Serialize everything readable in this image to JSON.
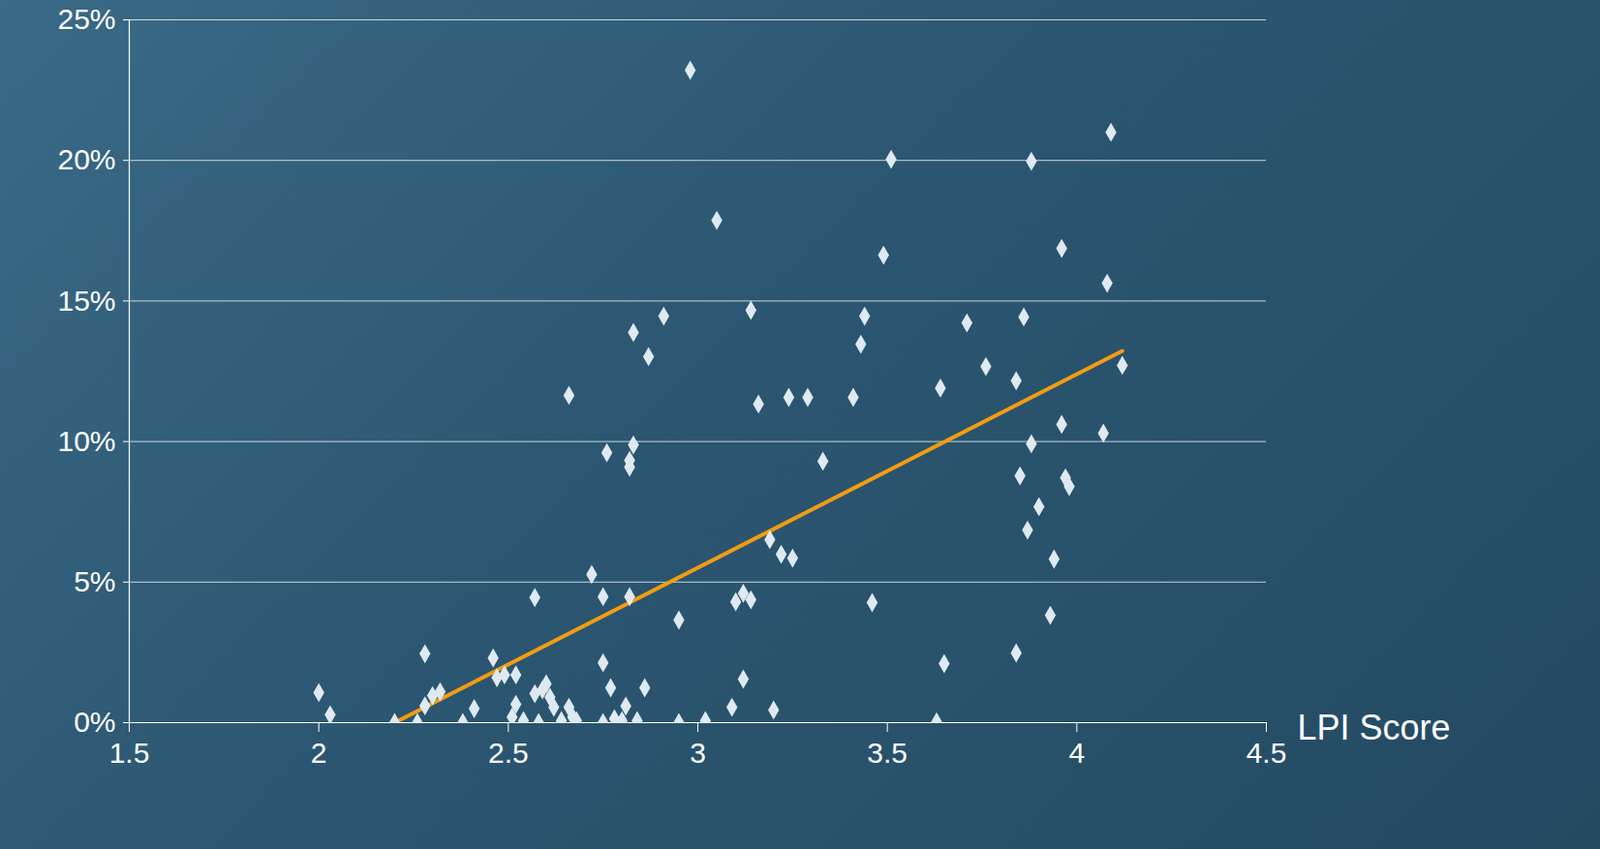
{
  "chart_data": {
    "type": "scatter",
    "x_label": "LPI Score",
    "xlim": [
      1.5,
      4.5
    ],
    "xticks": [
      1.5,
      2,
      2.5,
      3,
      3.5,
      4,
      4.5
    ],
    "ylim": [
      0,
      25
    ],
    "yticks": [
      {
        "value": 0,
        "label": "0%"
      },
      {
        "value": 5,
        "label": "5%"
      },
      {
        "value": 10,
        "label": "10%"
      },
      {
        "value": 15,
        "label": "15%"
      },
      {
        "value": 20,
        "label": "20%"
      },
      {
        "value": 25,
        "label": "25%"
      }
    ],
    "grid": true,
    "marker": "diamond",
    "color": "#dfe9f1",
    "points": {
      "x": [
        2.0,
        2.03,
        2.2,
        2.26,
        2.28,
        2.28,
        2.3,
        2.32,
        2.38,
        2.41,
        2.46,
        2.47,
        2.49,
        2.52,
        2.51,
        2.52,
        2.54,
        2.57,
        2.57,
        2.58,
        2.59,
        2.6,
        2.61,
        2.62,
        2.64,
        2.66,
        2.66,
        2.67,
        2.68,
        2.72,
        2.75,
        2.75,
        2.75,
        2.76,
        2.77,
        2.78,
        2.8,
        2.81,
        2.82,
        2.82,
        2.82,
        2.83,
        2.83,
        2.84,
        2.86,
        2.87,
        2.91,
        2.95,
        2.95,
        2.98,
        3.02,
        3.05,
        3.09,
        3.1,
        3.12,
        3.14,
        3.12,
        3.14,
        3.16,
        3.19,
        3.2,
        3.22,
        3.24,
        3.25,
        3.29,
        3.33,
        3.41,
        3.43,
        3.44,
        3.46,
        3.49,
        3.51,
        3.63,
        3.64,
        3.65,
        3.71,
        3.76,
        3.84,
        3.84,
        3.85,
        3.86,
        3.87,
        3.88,
        3.88,
        3.9,
        3.93,
        3.94,
        3.96,
        3.96,
        3.97,
        3.98,
        4.07,
        4.08,
        4.09,
        4.12
      ],
      "y": [
        1.07,
        0.28,
        0,
        0,
        2.45,
        0.6,
        0.96,
        1.1,
        0,
        0.5,
        2.3,
        1.6,
        1.7,
        1.7,
        0.2,
        0.65,
        0.07,
        4.45,
        1.03,
        0,
        1.17,
        1.38,
        0.9,
        0.55,
        0.07,
        11.64,
        0.55,
        0.2,
        0.07,
        5.27,
        2.13,
        0,
        4.48,
        9.6,
        1.24,
        0.14,
        0.07,
        0.59,
        9.33,
        9.09,
        4.48,
        9.88,
        13.88,
        0.07,
        1.24,
        13.02,
        14.46,
        3.65,
        0,
        23.21,
        0.07,
        17.87,
        0.55,
        4.3,
        4.6,
        4.37,
        1.55,
        14.67,
        11.33,
        6.51,
        0.45,
        5.99,
        11.57,
        5.85,
        11.57,
        9.3,
        11.57,
        13.46,
        14.46,
        4.27,
        16.63,
        20.04,
        0.03,
        11.9,
        2.1,
        14.22,
        12.67,
        2.48,
        12.16,
        8.78,
        14.43,
        6.85,
        9.92,
        19.97,
        7.68,
        3.82,
        5.82,
        10.61,
        16.87,
        8.71,
        8.4,
        10.3,
        15.63,
        21.0,
        12.71
      ]
    },
    "trend_line": {
      "x": [
        2.2,
        4.12
      ],
      "y": [
        0,
        13.22
      ],
      "color": "#f39c12"
    }
  }
}
